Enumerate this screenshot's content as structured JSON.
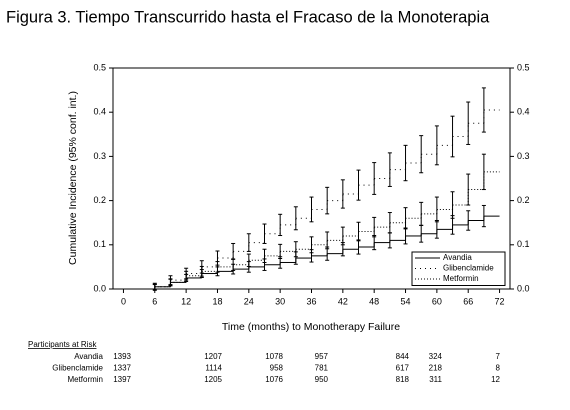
{
  "chart_data": {
    "type": "step-errorbar",
    "title": "Figura 3. Tiempo Transcurrido hasta el Fracaso de la Monoterapia",
    "x_label": "Time (months) to Monotherapy Failure",
    "y_label": "Cumulative Incidence (95% conf. int.)",
    "x": [
      6,
      9,
      12,
      15,
      18,
      21,
      24,
      27,
      30,
      33,
      36,
      39,
      42,
      45,
      48,
      51,
      54,
      57,
      60,
      63,
      66,
      69
    ],
    "series": [
      {
        "name": "Avandia",
        "color": "#000000",
        "line_style": "solid",
        "values": [
          0.005,
          0.015,
          0.025,
          0.035,
          0.04,
          0.045,
          0.05,
          0.055,
          0.06,
          0.07,
          0.075,
          0.08,
          0.09,
          0.095,
          0.105,
          0.11,
          0.12,
          0.125,
          0.135,
          0.145,
          0.155,
          0.165
        ],
        "errors": [
          0.005,
          0.007,
          0.008,
          0.009,
          0.01,
          0.011,
          0.012,
          0.013,
          0.013,
          0.014,
          0.014,
          0.015,
          0.015,
          0.016,
          0.016,
          0.017,
          0.018,
          0.019,
          0.02,
          0.021,
          0.022,
          0.024
        ]
      },
      {
        "name": "Glibenclamide",
        "color": "#000000",
        "line_style": "loose-dotted",
        "values": [
          0.005,
          0.02,
          0.035,
          0.05,
          0.07,
          0.085,
          0.105,
          0.125,
          0.145,
          0.16,
          0.18,
          0.2,
          0.215,
          0.235,
          0.25,
          0.27,
          0.285,
          0.305,
          0.325,
          0.345,
          0.375,
          0.405
        ],
        "errors": [
          0.008,
          0.01,
          0.012,
          0.014,
          0.016,
          0.018,
          0.02,
          0.022,
          0.024,
          0.026,
          0.028,
          0.03,
          0.032,
          0.034,
          0.036,
          0.038,
          0.04,
          0.042,
          0.044,
          0.046,
          0.048,
          0.05
        ]
      },
      {
        "name": "Metformin",
        "color": "#000000",
        "line_style": "dotted",
        "values": [
          0.005,
          0.015,
          0.03,
          0.04,
          0.05,
          0.055,
          0.065,
          0.075,
          0.085,
          0.09,
          0.1,
          0.11,
          0.12,
          0.13,
          0.14,
          0.15,
          0.16,
          0.17,
          0.18,
          0.19,
          0.225,
          0.265
        ],
        "errors": [
          0.006,
          0.008,
          0.01,
          0.011,
          0.012,
          0.013,
          0.014,
          0.015,
          0.016,
          0.017,
          0.018,
          0.019,
          0.02,
          0.021,
          0.022,
          0.023,
          0.024,
          0.026,
          0.028,
          0.03,
          0.035,
          0.04
        ]
      }
    ],
    "xlim": [
      -2,
      74
    ],
    "xticks": [
      0,
      6,
      12,
      18,
      24,
      30,
      36,
      42,
      48,
      54,
      60,
      66,
      72
    ],
    "ylim": [
      0,
      0.5
    ],
    "yticks": [
      {
        "value": 0,
        "label": "0.0"
      },
      0.1,
      0.2,
      0.3,
      0.4,
      0.5
    ],
    "y2lim": [
      0,
      0.5
    ],
    "y2ticks": [
      {
        "value": 0,
        "label": "0.0"
      },
      0.1,
      0.2,
      0.3,
      0.4,
      0.5
    ],
    "legend": "lower-right"
  },
  "risk_table": {
    "title": "Participants at Risk",
    "rows": [
      {
        "name": "Avandia",
        "counts": [
          1393,
          1207,
          1078,
          957,
          844,
          324,
          7
        ]
      },
      {
        "name": "Glibenclamide",
        "counts": [
          1337,
          1114,
          958,
          781,
          617,
          218,
          8
        ]
      },
      {
        "name": "Metformin",
        "counts": [
          1397,
          1205,
          1076,
          950,
          818,
          311,
          12
        ]
      }
    ]
  }
}
